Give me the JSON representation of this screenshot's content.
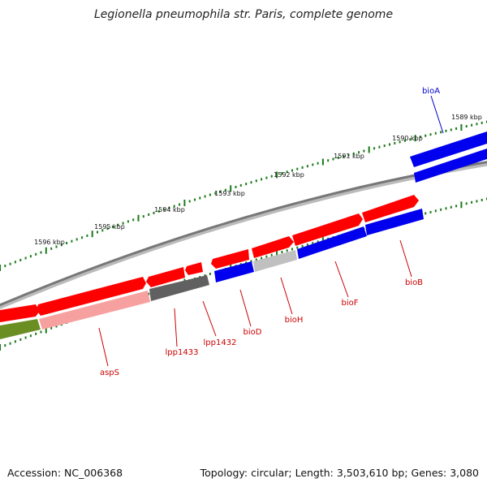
{
  "title": "Legionella pneumophila str. Paris, complete genome",
  "footer": {
    "accession": "Accession: NC_006368",
    "summary": "Topology: circular; Length: 3,503,610 bp; Genes: 3,080"
  },
  "colors": {
    "forward_cds": "#ff0000",
    "reverse_cds": "#0000ee",
    "other_cds": "#606060",
    "light_forward": "#f7a0a0",
    "light_other": "#c0c0c0",
    "olive": "#6b8e23",
    "backbone": "#777777",
    "tick": "#1a7a1a",
    "label_red": "#cc0000",
    "label_blue": "#0000cc"
  },
  "ruler": [
    {
      "label": "1589 kbp",
      "pos": 1589
    },
    {
      "label": "1590 kbp",
      "pos": 1590
    },
    {
      "label": "1591 kbp",
      "pos": 1591
    },
    {
      "label": "1592 kbp",
      "pos": 1592
    },
    {
      "label": "1593 kbp",
      "pos": 1593
    },
    {
      "label": "1594 kbp",
      "pos": 1594
    },
    {
      "label": "1595 kbp",
      "pos": 1595
    },
    {
      "label": "1596 kbp",
      "pos": 1596
    }
  ],
  "genes": [
    {
      "label": "bioA",
      "color": "label_blue"
    },
    {
      "label": "bioB",
      "color": "label_red"
    },
    {
      "label": "bioF",
      "color": "label_red"
    },
    {
      "label": "bioH",
      "color": "label_red"
    },
    {
      "label": "bioD",
      "color": "label_red"
    },
    {
      "label": "lpp1432",
      "color": "label_red"
    },
    {
      "label": "lpp1433",
      "color": "label_red"
    },
    {
      "label": "aspS",
      "color": "label_red"
    }
  ]
}
